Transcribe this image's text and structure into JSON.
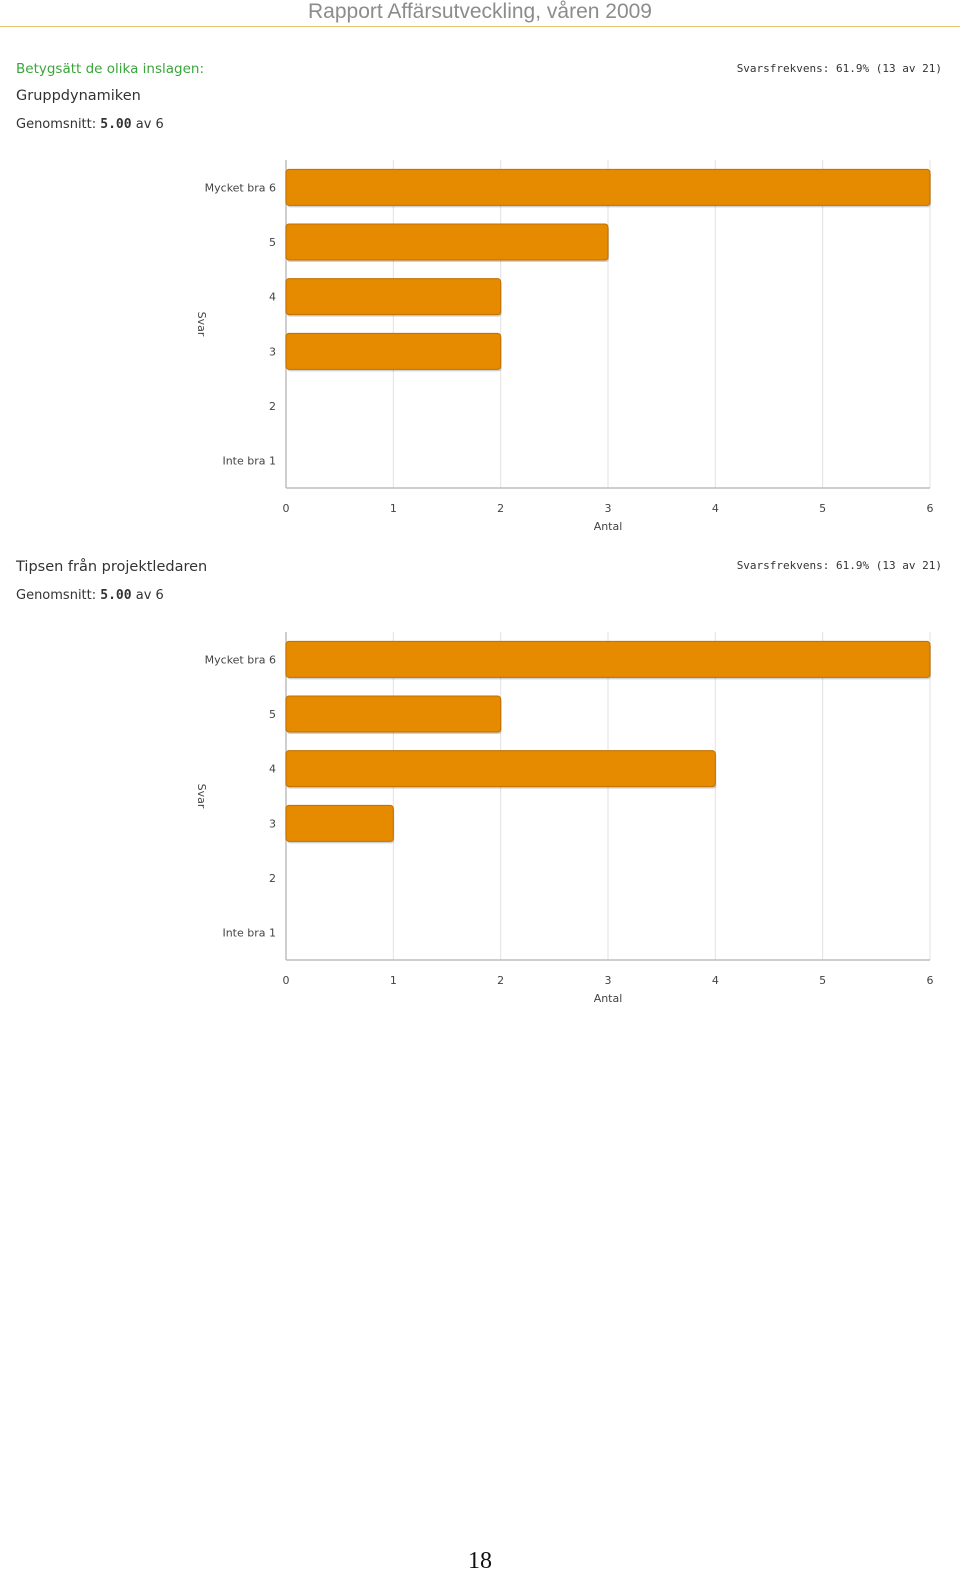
{
  "header": {
    "title": "Rapport Affärsutveckling, våren 2009"
  },
  "intro": {
    "text": "Betygsätt de olika inslagen:"
  },
  "sections": [
    {
      "title": "Gruppdynamiken",
      "response_rate": "Svarsfrekvens: 61.9% (13 av 21)",
      "average_label": "Genomsnitt:",
      "average_value": "5.00",
      "average_suffix": "av 6"
    },
    {
      "title": "Tipsen från projektledaren",
      "response_rate": "Svarsfrekvens: 61.9% (13 av 21)",
      "average_label": "Genomsnitt:",
      "average_value": "5.00",
      "average_suffix": "av 6"
    }
  ],
  "colors": {
    "bar": "#e68a00",
    "bar_edge": "#c06f00",
    "grid": "#e2e2e2",
    "axis": "#bdbdbd"
  },
  "chart_data": [
    {
      "type": "bar",
      "orientation": "horizontal",
      "categories": [
        "Mycket bra 6",
        "5",
        "4",
        "3",
        "2",
        "Inte bra 1"
      ],
      "values": [
        6,
        3,
        2,
        2,
        0,
        0
      ],
      "xlabel": "Antal",
      "ylabel": "Svar",
      "xlim": [
        0,
        6
      ],
      "xticks": [
        "0",
        "1",
        "2",
        "3",
        "4",
        "5",
        "6"
      ],
      "grid": true
    },
    {
      "type": "bar",
      "orientation": "horizontal",
      "categories": [
        "Mycket bra 6",
        "5",
        "4",
        "3",
        "2",
        "Inte bra 1"
      ],
      "values": [
        6,
        2,
        4,
        1,
        0,
        0
      ],
      "xlabel": "Antal",
      "ylabel": "Svar",
      "xlim": [
        0,
        6
      ],
      "xticks": [
        "0",
        "1",
        "2",
        "3",
        "4",
        "5",
        "6"
      ],
      "grid": true
    }
  ],
  "footer": {
    "page_number": "18"
  }
}
